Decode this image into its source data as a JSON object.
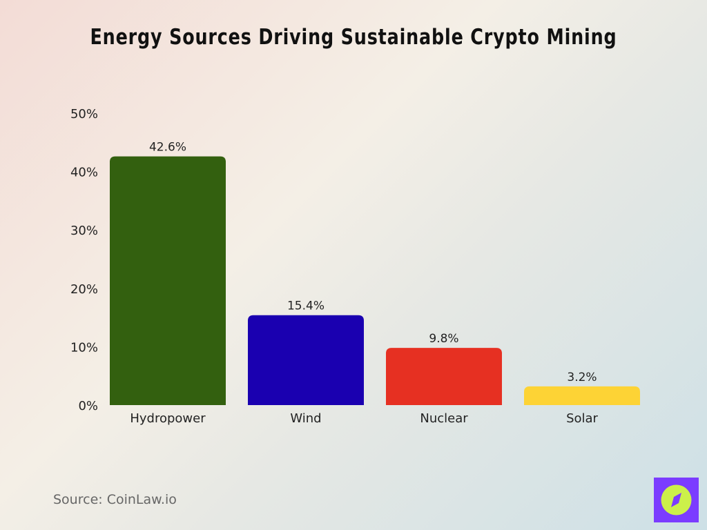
{
  "chart_data": {
    "type": "bar",
    "title": "Energy Sources Driving Sustainable Crypto Mining",
    "categories": [
      "Hydropower",
      "Wind",
      "Nuclear",
      "Solar"
    ],
    "values": [
      42.6,
      15.4,
      9.8,
      3.2
    ],
    "data_labels": [
      "42.6%",
      "15.4%",
      "9.8%",
      "3.2%"
    ],
    "colors": [
      "#33600f",
      "#1a00b0",
      "#e63022",
      "#fdd335"
    ],
    "ylim": [
      0,
      50
    ],
    "yticks": [
      0,
      10,
      20,
      30,
      40,
      50
    ],
    "ytick_labels": [
      "0%",
      "10%",
      "20%",
      "30%",
      "40%",
      "50%"
    ],
    "xlabel": "",
    "ylabel": "",
    "grid": false,
    "legend": "none"
  },
  "source": "Source: CoinLaw.io",
  "logo": {
    "icon": "compass-icon",
    "background": "#7b3cff",
    "foreground": "#ccf04a"
  }
}
